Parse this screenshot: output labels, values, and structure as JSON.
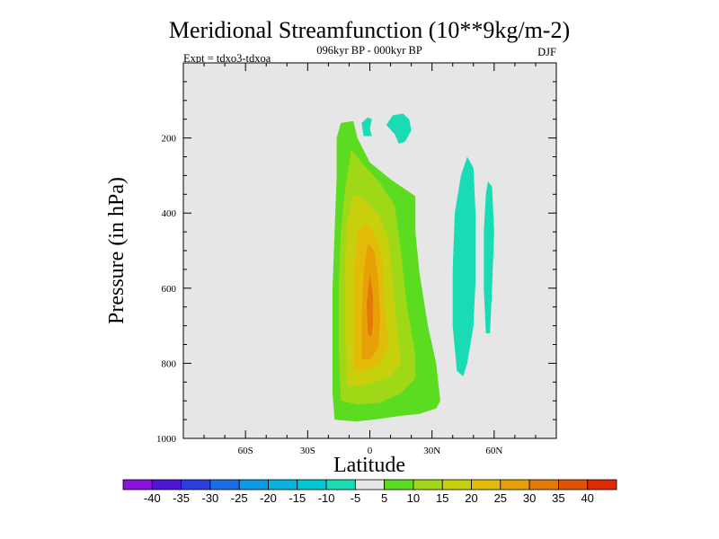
{
  "chart_data": {
    "type": "contour",
    "title": "Meridional Streamfunction (10**9kg/m-2)",
    "subtitle": "096kyr BP - 000kyr BP",
    "left_label": "Expt = tdxo3-tdxoa",
    "right_label": "DJF",
    "xlabel": "Latitude",
    "ylabel": "Pressure (in hPa)",
    "xlim": [
      -90,
      90
    ],
    "ylim": [
      1000,
      0
    ],
    "x_ticks": [
      {
        "value": -60,
        "label": "60S"
      },
      {
        "value": -30,
        "label": "30S"
      },
      {
        "value": 0,
        "label": "0"
      },
      {
        "value": 30,
        "label": "30N"
      },
      {
        "value": 60,
        "label": "60N"
      }
    ],
    "y_ticks": [
      {
        "value": 200,
        "label": "200"
      },
      {
        "value": 400,
        "label": "400"
      },
      {
        "value": 600,
        "label": "600"
      },
      {
        "value": 800,
        "label": "800"
      },
      {
        "value": 1000,
        "label": "1000"
      }
    ],
    "background_color": "#e6e6e6",
    "levels": [
      {
        "lo": -45,
        "hi": -40,
        "color": "#8a12dc"
      },
      {
        "lo": -40,
        "hi": -35,
        "color": "#5016d8"
      },
      {
        "lo": -35,
        "hi": -30,
        "color": "#2a3ee0"
      },
      {
        "lo": -30,
        "hi": -25,
        "color": "#1a6ee8"
      },
      {
        "lo": -25,
        "hi": -20,
        "color": "#0b9ae6"
      },
      {
        "lo": -20,
        "hi": -15,
        "color": "#06b4dc"
      },
      {
        "lo": -15,
        "hi": -10,
        "color": "#00c8d2"
      },
      {
        "lo": -10,
        "hi": -5,
        "color": "#1adcb4"
      },
      {
        "lo": -5,
        "hi": 5,
        "color": "#e6e6e6"
      },
      {
        "lo": 5,
        "hi": 10,
        "color": "#5cdc20"
      },
      {
        "lo": 10,
        "hi": 15,
        "color": "#9ed816"
      },
      {
        "lo": 15,
        "hi": 20,
        "color": "#c8d00e"
      },
      {
        "lo": 20,
        "hi": 25,
        "color": "#e2bc08"
      },
      {
        "lo": 25,
        "hi": 30,
        "color": "#e8a008"
      },
      {
        "lo": 30,
        "hi": 35,
        "color": "#e27a06"
      },
      {
        "lo": 35,
        "hi": 40,
        "color": "#e25206"
      },
      {
        "lo": 40,
        "hi": 45,
        "color": "#dc2a04"
      }
    ],
    "colorbar_labels": [
      "-40",
      "-35",
      "-30",
      "-25",
      "-20",
      "-15",
      "-10",
      "-5",
      "5",
      "10",
      "15",
      "20",
      "25",
      "30",
      "35",
      "40"
    ],
    "regions": [
      {
        "name": "positive-cell-5",
        "level": 5,
        "polygon": [
          [
            -17,
            950
          ],
          [
            -18,
            880
          ],
          [
            -18,
            750
          ],
          [
            -18,
            600
          ],
          [
            -17,
            450
          ],
          [
            -16,
            300
          ],
          [
            -16,
            200
          ],
          [
            -14,
            160
          ],
          [
            -8,
            155
          ],
          [
            -6,
            200
          ],
          [
            0,
            265
          ],
          [
            10,
            310
          ],
          [
            22,
            355
          ],
          [
            22,
            450
          ],
          [
            24,
            560
          ],
          [
            28,
            700
          ],
          [
            32,
            800
          ],
          [
            34,
            900
          ],
          [
            32,
            920
          ],
          [
            24,
            935
          ],
          [
            15,
            940
          ],
          [
            2,
            950
          ],
          [
            -7,
            955
          ]
        ]
      },
      {
        "name": "positive-cell-10",
        "level": 10,
        "polygon": [
          [
            -14,
            900
          ],
          [
            -15,
            750
          ],
          [
            -15,
            600
          ],
          [
            -14,
            450
          ],
          [
            -12,
            340
          ],
          [
            -9,
            230
          ],
          [
            -4,
            265
          ],
          [
            5,
            320
          ],
          [
            12,
            380
          ],
          [
            15,
            500
          ],
          [
            18,
            650
          ],
          [
            22,
            780
          ],
          [
            22,
            840
          ],
          [
            15,
            880
          ],
          [
            5,
            905
          ],
          [
            -6,
            910
          ]
        ]
      },
      {
        "name": "positive-cell-15",
        "level": 15,
        "polygon": [
          [
            -11,
            860
          ],
          [
            -12,
            700
          ],
          [
            -12,
            550
          ],
          [
            -11,
            430
          ],
          [
            -8,
            350
          ],
          [
            -3,
            360
          ],
          [
            4,
            400
          ],
          [
            9,
            470
          ],
          [
            11,
            580
          ],
          [
            13,
            700
          ],
          [
            15,
            800
          ],
          [
            10,
            835
          ],
          [
            0,
            855
          ],
          [
            -6,
            860
          ]
        ]
      },
      {
        "name": "positive-cell-20",
        "level": 20,
        "polygon": [
          [
            -8,
            820
          ],
          [
            -8,
            700
          ],
          [
            -8,
            560
          ],
          [
            -6,
            450
          ],
          [
            -2,
            430
          ],
          [
            3,
            460
          ],
          [
            6,
            520
          ],
          [
            7,
            630
          ],
          [
            9,
            750
          ],
          [
            5,
            800
          ],
          [
            -2,
            820
          ]
        ]
      },
      {
        "name": "positive-cell-25",
        "level": 25,
        "polygon": [
          [
            -4,
            790
          ],
          [
            -4,
            680
          ],
          [
            -3,
            560
          ],
          [
            -1,
            480
          ],
          [
            2,
            500
          ],
          [
            4,
            570
          ],
          [
            5,
            680
          ],
          [
            4,
            760
          ],
          [
            0,
            790
          ]
        ]
      },
      {
        "name": "positive-cell-30",
        "level": 30,
        "polygon": [
          [
            -1,
            720
          ],
          [
            -1.5,
            640
          ],
          [
            0,
            560
          ],
          [
            1.5,
            620
          ],
          [
            1.5,
            700
          ],
          [
            0.5,
            730
          ]
        ]
      },
      {
        "name": "negative-cell-upper-a",
        "level": -10,
        "polygon": [
          [
            -3,
            195
          ],
          [
            -4,
            160
          ],
          [
            -1,
            145
          ],
          [
            1,
            150
          ],
          [
            0,
            175
          ],
          [
            1,
            195
          ]
        ]
      },
      {
        "name": "negative-cell-upper-b",
        "level": -10,
        "polygon": [
          [
            8,
            165
          ],
          [
            11,
            140
          ],
          [
            16,
            135
          ],
          [
            19,
            150
          ],
          [
            20,
            180
          ],
          [
            17,
            210
          ],
          [
            14,
            215
          ],
          [
            12,
            190
          ]
        ]
      },
      {
        "name": "negative-cell-north-a",
        "level": -10,
        "polygon": [
          [
            42,
            820
          ],
          [
            40,
            700
          ],
          [
            40,
            550
          ],
          [
            41,
            400
          ],
          [
            44,
            300
          ],
          [
            47,
            250
          ],
          [
            50,
            280
          ],
          [
            51,
            400
          ],
          [
            51,
            580
          ],
          [
            50,
            700
          ],
          [
            47,
            800
          ],
          [
            45,
            835
          ]
        ]
      },
      {
        "name": "negative-cell-north-b",
        "level": -10,
        "polygon": [
          [
            56,
            720
          ],
          [
            55,
            600
          ],
          [
            55,
            450
          ],
          [
            56,
            350
          ],
          [
            57,
            315
          ],
          [
            59,
            330
          ],
          [
            60,
            450
          ],
          [
            59,
            600
          ],
          [
            58,
            720
          ]
        ]
      }
    ]
  }
}
